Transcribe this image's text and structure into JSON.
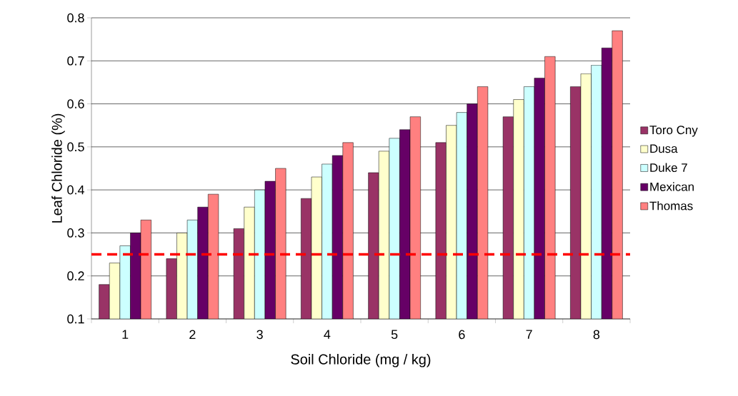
{
  "chart_data": {
    "type": "bar",
    "xlabel": "Soil Chloride (mg / kg)",
    "ylabel": "Leaf Chloride (%)",
    "categories": [
      "1",
      "2",
      "3",
      "4",
      "5",
      "6",
      "7",
      "8"
    ],
    "series": [
      {
        "name": "Toro Cny",
        "color": "#993366",
        "values": [
          0.18,
          0.24,
          0.31,
          0.38,
          0.44,
          0.51,
          0.57,
          0.64
        ]
      },
      {
        "name": "Dusa",
        "color": "#ffffcc",
        "values": [
          0.23,
          0.3,
          0.36,
          0.43,
          0.49,
          0.55,
          0.61,
          0.67
        ]
      },
      {
        "name": "Duke 7",
        "color": "#ccffff",
        "values": [
          0.27,
          0.33,
          0.4,
          0.46,
          0.52,
          0.58,
          0.64,
          0.69
        ]
      },
      {
        "name": "Mexican",
        "color": "#660066",
        "values": [
          0.3,
          0.36,
          0.42,
          0.48,
          0.54,
          0.6,
          0.66,
          0.73
        ]
      },
      {
        "name": "Thomas",
        "color": "#ff8080",
        "values": [
          0.33,
          0.39,
          0.45,
          0.51,
          0.57,
          0.64,
          0.71,
          0.77
        ]
      }
    ],
    "ylim": [
      0.1,
      0.8
    ],
    "yticks": [
      0.1,
      0.2,
      0.3,
      0.4,
      0.5,
      0.6,
      0.7,
      0.8
    ],
    "ref_lines": [
      {
        "axis": "y",
        "value": 0.25,
        "color": "#ff0000",
        "line_style": "dashed"
      }
    ],
    "grid": "y",
    "legend": "right"
  }
}
